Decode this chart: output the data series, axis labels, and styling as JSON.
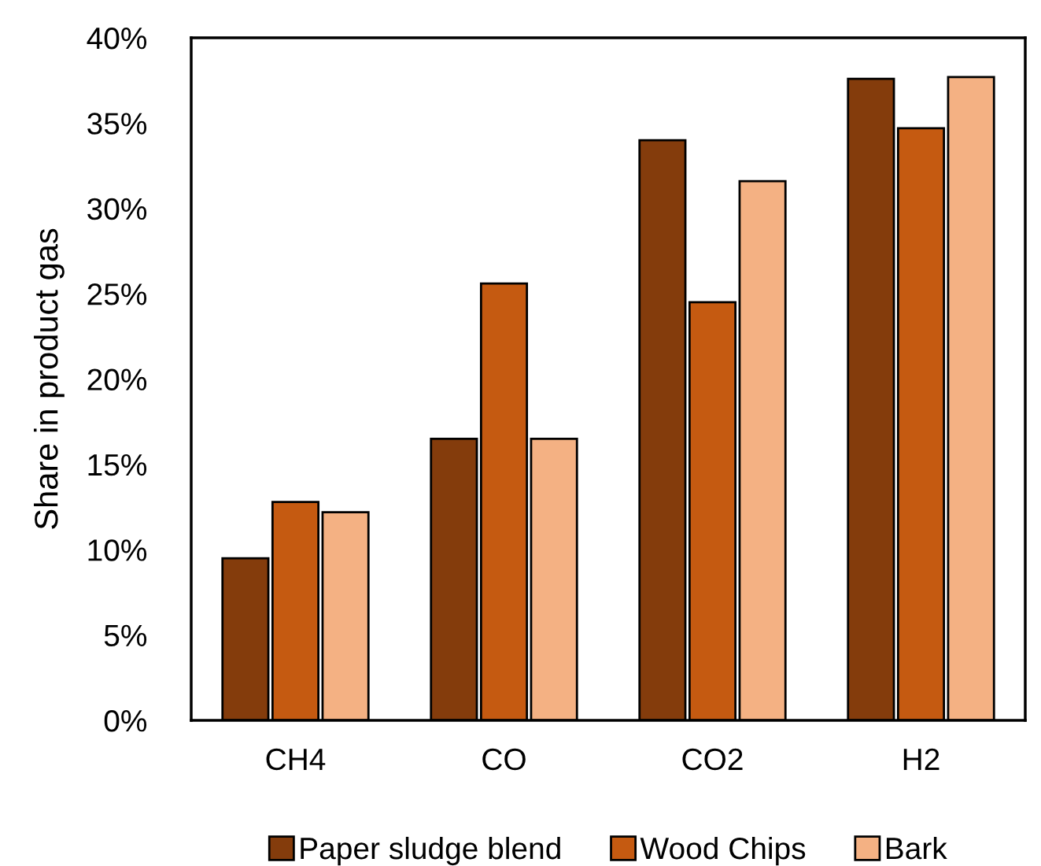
{
  "chart_data": {
    "type": "bar",
    "ylabel": "Share in product gas",
    "categories": [
      "CH4",
      "CO",
      "CO2",
      "H2"
    ],
    "series": [
      {
        "name": "Paper sludge blend",
        "color": "#843c0c",
        "values": [
          9.5,
          16.5,
          34.0,
          37.6
        ]
      },
      {
        "name": "Wood Chips",
        "color": "#c55a11",
        "values": [
          12.8,
          25.6,
          24.5,
          34.7
        ]
      },
      {
        "name": "Bark",
        "color": "#f4b183",
        "values": [
          12.2,
          16.5,
          31.6,
          37.7
        ]
      }
    ],
    "ylim": [
      0,
      40
    ],
    "yticks": [
      {
        "value": 0,
        "label": "0%"
      },
      {
        "value": 5,
        "label": "5%"
      },
      {
        "value": 10,
        "label": "10%"
      },
      {
        "value": 15,
        "label": "15%"
      },
      {
        "value": 20,
        "label": "20%"
      },
      {
        "value": 25,
        "label": "25%"
      },
      {
        "value": 30,
        "label": "30%"
      },
      {
        "value": 35,
        "label": "35%"
      },
      {
        "value": 40,
        "label": "40%"
      }
    ],
    "grid": false,
    "legend": "bottom"
  }
}
